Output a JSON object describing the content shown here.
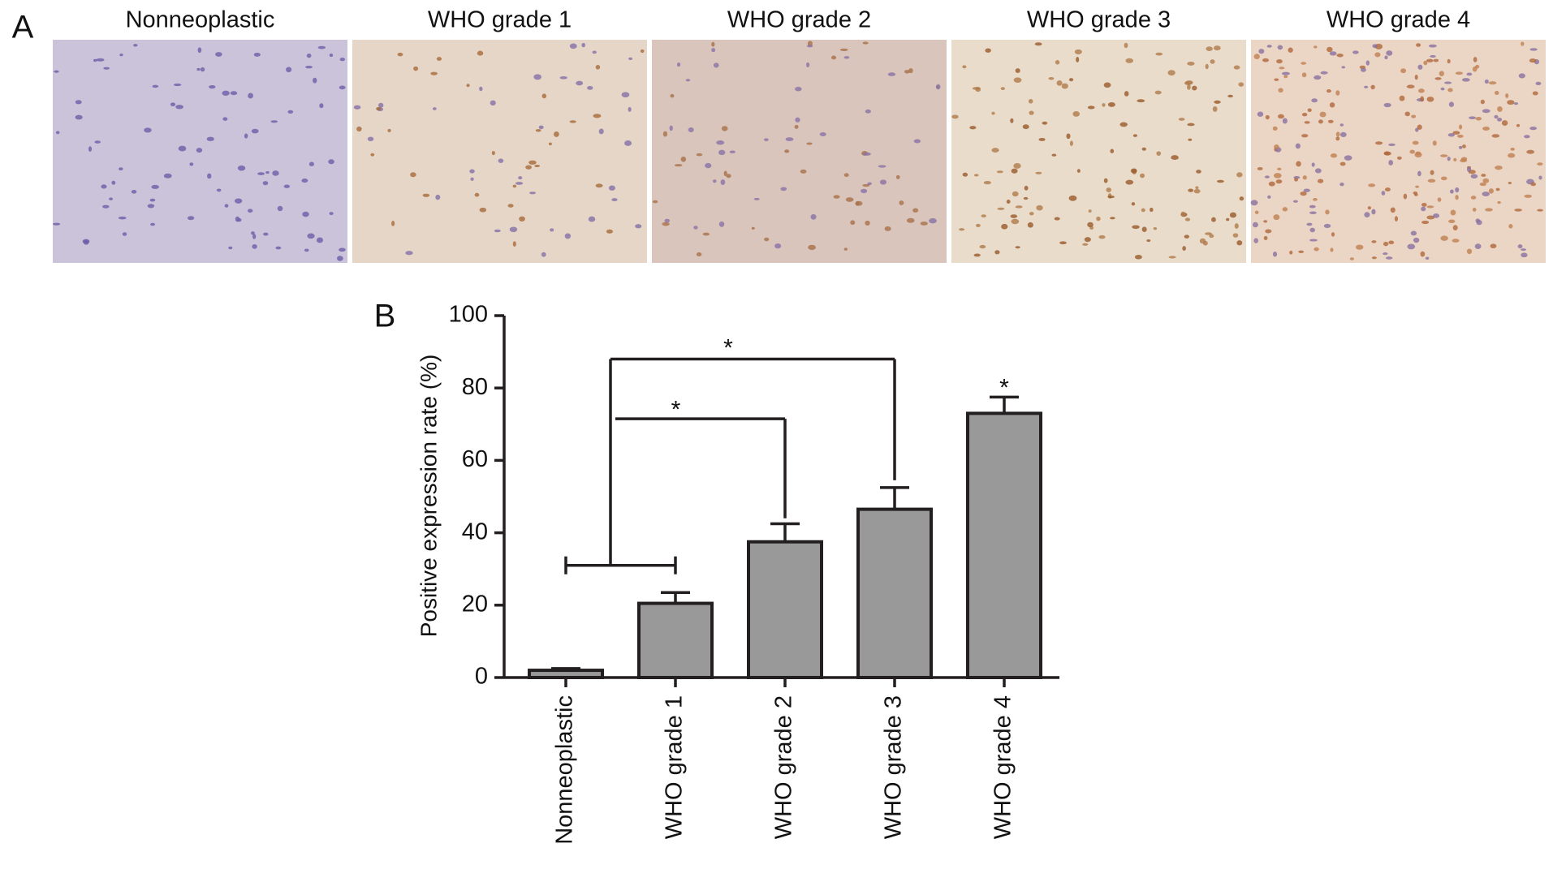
{
  "panel_a": {
    "label": "A",
    "images": [
      {
        "title": "Nonneoplastic"
      },
      {
        "title": "WHO grade 1"
      },
      {
        "title": "WHO grade 2"
      },
      {
        "title": "WHO grade 3"
      },
      {
        "title": "WHO grade 4"
      }
    ]
  },
  "chart_data": {
    "type": "bar",
    "panel_label": "B",
    "y_label": "Positive expression rate (%)",
    "categories": [
      "Nonneoplastic",
      "WHO grade 1",
      "WHO grade 2",
      "WHO grade 3",
      "WHO grade 4"
    ],
    "values": [
      2,
      20.5,
      37.5,
      46.5,
      73
    ],
    "errors": [
      0.5,
      3,
      5,
      6,
      4.5
    ],
    "color": "#999999",
    "ylim": [
      0,
      100
    ],
    "yticks": [
      0,
      20,
      40,
      60,
      80,
      100
    ],
    "annotations": [
      "*",
      "*",
      "*"
    ]
  }
}
